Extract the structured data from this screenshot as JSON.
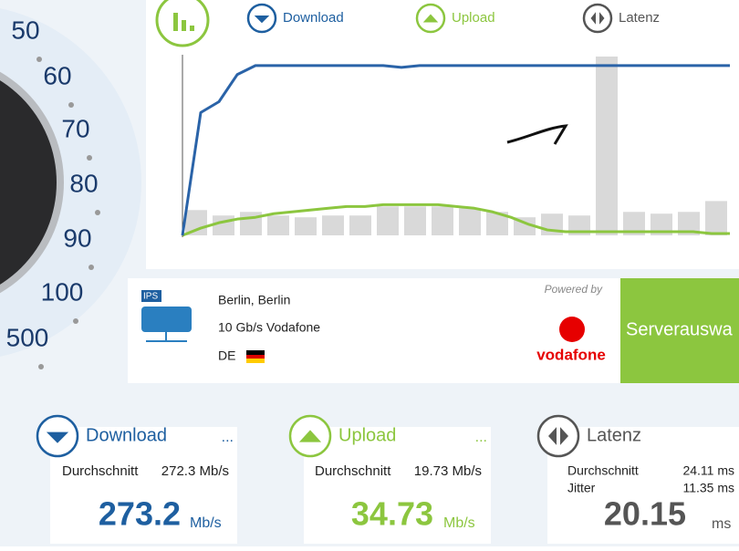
{
  "legend": {
    "download": "Download",
    "upload": "Upload",
    "latency": "Latenz"
  },
  "gauge": {
    "ticks": [
      50,
      60,
      70,
      80,
      90,
      100,
      500
    ]
  },
  "chart": {
    "ylim": [
      0,
      100
    ],
    "download": [
      0,
      68,
      74,
      89,
      94,
      94,
      94,
      94,
      94,
      94,
      94,
      94,
      93,
      94,
      94,
      94,
      94,
      94,
      94,
      94,
      94,
      94,
      94,
      94,
      94,
      94,
      94,
      94,
      94,
      94,
      94
    ],
    "upload": [
      0,
      4,
      7,
      9,
      10,
      12,
      13,
      14,
      15,
      16,
      16,
      17,
      17,
      17,
      17,
      16,
      15,
      13,
      10,
      6,
      3,
      2,
      2,
      2,
      2,
      2,
      2,
      2,
      2,
      1,
      1
    ],
    "latency": [
      14,
      11,
      13,
      11,
      10,
      11,
      11,
      16,
      16,
      16,
      15,
      13,
      10,
      12,
      11,
      99,
      13,
      12,
      13,
      19
    ]
  },
  "server": {
    "icon_label": "IPS",
    "city": "Berlin, Berlin",
    "provider": "10 Gb/s Vodafone",
    "country": "DE",
    "powered_by": "Powered by",
    "brand": "vodafone",
    "button": "Serverauswa"
  },
  "cards": {
    "download": {
      "title": "Download",
      "more": "...",
      "avg_label": "Durchschnitt",
      "avg": "272.3 Mb/s",
      "value": "273.2",
      "unit": "Mb/s"
    },
    "upload": {
      "title": "Upload",
      "more": "...",
      "avg_label": "Durchschnitt",
      "avg": "19.73 Mb/s",
      "value": "34.73",
      "unit": "Mb/s"
    },
    "latency": {
      "title": "Latenz",
      "avg_label": "Durchschnitt",
      "avg": "24.11 ms",
      "jitter_label": "Jitter",
      "jitter": "11.35 ms",
      "value": "20.15",
      "unit": "ms"
    }
  }
}
